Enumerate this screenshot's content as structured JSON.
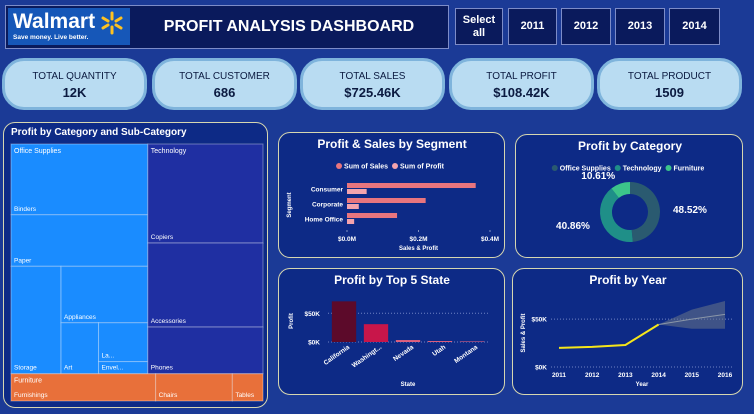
{
  "header": {
    "logo": "Walmart",
    "tagline": "Save money. Live better.",
    "title": "PROFIT ANALYSIS DASHBOARD",
    "slicers": [
      "Select all",
      "2011",
      "2012",
      "2013",
      "2014"
    ]
  },
  "kpis": [
    {
      "label": "TOTAL QUANTITY",
      "value": "12K"
    },
    {
      "label": "TOTAL CUSTOMER",
      "value": "686"
    },
    {
      "label": "TOTAL SALES",
      "value": "$725.46K"
    },
    {
      "label": "TOTAL PROFIT",
      "value": "$108.42K"
    },
    {
      "label": "TOTAL PRODUCT",
      "value": "1509"
    }
  ],
  "chart_data": [
    {
      "type": "treemap",
      "title": "Profit by Category and Sub-Category",
      "groups": [
        {
          "name": "Office Supplies",
          "color": "#1a8cff",
          "children": [
            {
              "name": "Binders",
              "value": 16.2
            },
            {
              "name": "Paper",
              "value": 11.8
            },
            {
              "name": "Storage",
              "value": 9.0
            },
            {
              "name": "Appliances",
              "value": 8.2
            },
            {
              "name": "Art",
              "value": 3.2
            },
            {
              "name": "La...",
              "value": 3.2
            },
            {
              "name": "Envel...",
              "value": 1.0
            }
          ]
        },
        {
          "name": "Technology",
          "color": "#1f2fa2",
          "children": [
            {
              "name": "Copiers",
              "value": 19.1
            },
            {
              "name": "Accessories",
              "value": 16.2
            },
            {
              "name": "Phones",
              "value": 9.0
            }
          ]
        },
        {
          "name": "Furniture",
          "color": "#e8703a",
          "children": [
            {
              "name": "Furnishings",
              "value": 6.6
            },
            {
              "name": "Chairs",
              "value": 3.5
            },
            {
              "name": "Tables",
              "value": 1.4
            }
          ]
        }
      ]
    },
    {
      "type": "hbar",
      "title": "Profit & Sales by Segment",
      "categories": [
        "Consumer",
        "Corporate",
        "Home Office"
      ],
      "series": [
        {
          "name": "Sum of Sales",
          "color": "#e8757e",
          "values": [
            0.36,
            0.22,
            0.14
          ]
        },
        {
          "name": "Sum of Profit",
          "color": "#f4a3ad",
          "values": [
            0.055,
            0.033,
            0.02
          ]
        }
      ],
      "xlim": [
        0,
        0.4
      ],
      "xticks": [
        {
          "value": 0,
          "label": "$0.0M"
        },
        {
          "value": 0.2,
          "label": "$0.2M"
        },
        {
          "value": 0.4,
          "label": "$0.4M"
        }
      ],
      "xlabel": "Sales & Profit",
      "ylabel": "Segment"
    },
    {
      "type": "donut",
      "title": "Profit by Category",
      "categories": [
        "Office Supplies",
        "Technology",
        "Furniture"
      ],
      "values": [
        48.52,
        40.86,
        10.61
      ],
      "value_labels": [
        "48.52%",
        "40.86%",
        "10.61%"
      ],
      "colors": [
        "#2a5a70",
        "#1f8f88",
        "#3cc48a"
      ]
    },
    {
      "type": "bar",
      "title": "Profit by Top 5 State",
      "categories": [
        "California",
        "Washingt...",
        "Nevada",
        "Utah",
        "Montana"
      ],
      "values": [
        70.7,
        31,
        3.4,
        1.7,
        1
      ],
      "colors": [
        "#5c0a2a",
        "#c8164a",
        "#e0607e",
        "#e0607e",
        "#e0607e"
      ],
      "ylim": [
        0,
        80
      ],
      "yticks": [
        {
          "value": 0,
          "label": "$0K"
        },
        {
          "value": 50,
          "label": "$50K"
        }
      ],
      "xlabel": "State",
      "ylabel": "Profit",
      "grid": true
    },
    {
      "type": "line",
      "title": "Profit by Year",
      "x": [
        2011,
        2012,
        2013,
        2014,
        2015,
        2016
      ],
      "series": [
        {
          "color": "#f5e61a",
          "values": [
            20,
            21,
            23,
            44.4,
            null,
            null
          ]
        },
        {
          "color": "#8a96a8",
          "values": [
            null,
            null,
            null,
            44.4,
            50,
            55
          ]
        }
      ],
      "band": {
        "color": "#6a7488",
        "low": [
          null,
          null,
          null,
          44.4,
          40,
          40
        ],
        "high": [
          null,
          null,
          null,
          44.4,
          60,
          69
        ]
      },
      "xlim": [
        2011,
        2016
      ],
      "xticks": [
        2011,
        2012,
        2013,
        2014,
        2015,
        2016
      ],
      "ylim": [
        0,
        70
      ],
      "yticks": [
        {
          "value": 0,
          "label": "$0K"
        },
        {
          "value": 50,
          "label": "$50K"
        }
      ],
      "xlabel": "Year",
      "ylabel": "Sales & Profit",
      "grid": true
    }
  ]
}
